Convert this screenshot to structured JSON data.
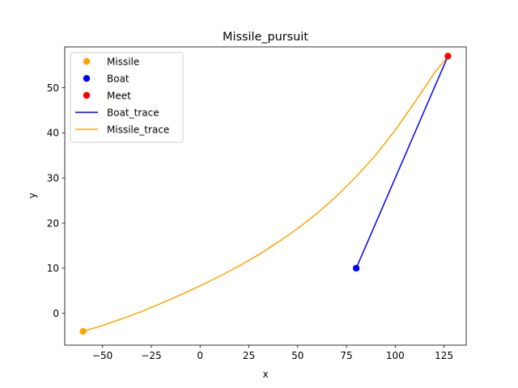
{
  "chart_data": {
    "type": "line",
    "title": "Missile_pursuit",
    "xlabel": "x",
    "ylabel": "y",
    "xlim": [
      -69.35,
      136.35
    ],
    "ylim": [
      -7.05,
      59.05
    ],
    "xticks": [
      -50,
      -25,
      0,
      25,
      50,
      75,
      100,
      125
    ],
    "xtick_labels": [
      "−50",
      "−25",
      "0",
      "25",
      "50",
      "75",
      "100",
      "125"
    ],
    "yticks": [
      0,
      10,
      20,
      30,
      40,
      50
    ],
    "ytick_labels": [
      "0",
      "10",
      "20",
      "30",
      "40",
      "50"
    ],
    "grid": false,
    "legend_position": "upper-left",
    "points": [
      {
        "name": "Missile",
        "x": -60,
        "y": -4,
        "color": "#ffa500"
      },
      {
        "name": "Boat",
        "x": 80,
        "y": 10,
        "color": "#0000ff"
      },
      {
        "name": "Meet",
        "x": 127,
        "y": 57,
        "color": "#ff0000"
      }
    ],
    "series": [
      {
        "name": "Boat_trace",
        "color": "#0000ff",
        "x": [
          80,
          127
        ],
        "y": [
          10,
          57
        ]
      },
      {
        "name": "Missile_trace",
        "color": "#ffa500",
        "x": [
          -60,
          -50,
          -40,
          -30,
          -20,
          -10,
          0,
          10,
          20,
          30,
          40,
          50,
          60,
          70,
          80,
          90,
          100,
          110,
          120,
          127
        ],
        "y": [
          -4,
          -2.7,
          -1.2,
          0.4,
          2.2,
          4.1,
          6.1,
          8.2,
          10.5,
          13.0,
          15.8,
          18.8,
          22.2,
          26.0,
          30.3,
          35.1,
          40.6,
          46.8,
          53.2,
          57
        ]
      }
    ],
    "legend": [
      {
        "label": "Missile",
        "kind": "marker",
        "color": "#ffa500"
      },
      {
        "label": "Boat",
        "kind": "marker",
        "color": "#0000ff"
      },
      {
        "label": "Meet",
        "kind": "marker",
        "color": "#ff0000"
      },
      {
        "label": "Boat_trace",
        "kind": "line",
        "color": "#0000ff"
      },
      {
        "label": "Missile_trace",
        "kind": "line",
        "color": "#ffa500"
      }
    ]
  }
}
